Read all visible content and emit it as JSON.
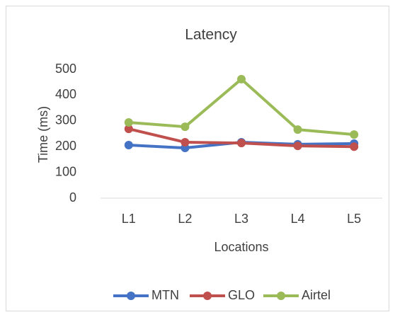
{
  "chart_data": {
    "type": "line",
    "title": "Latency",
    "x_label": "Locations",
    "y_label": "Time (ms)",
    "categories": [
      "L1",
      "L2",
      "L3",
      "L4",
      "L5"
    ],
    "series": [
      {
        "name": "MTN",
        "color": "#4472c4",
        "values": [
          206,
          195,
          217,
          209,
          212
        ]
      },
      {
        "name": "GLO",
        "color": "#c0504d",
        "values": [
          269,
          217,
          214,
          203,
          200
        ]
      },
      {
        "name": "Airtel",
        "color": "#9bbb59",
        "values": [
          294,
          277,
          462,
          266,
          247
        ]
      }
    ],
    "ylim": [
      0,
      500
    ],
    "yticks": [
      0,
      100,
      200,
      300,
      400,
      500
    ],
    "grid": false,
    "legend": "bottom"
  }
}
